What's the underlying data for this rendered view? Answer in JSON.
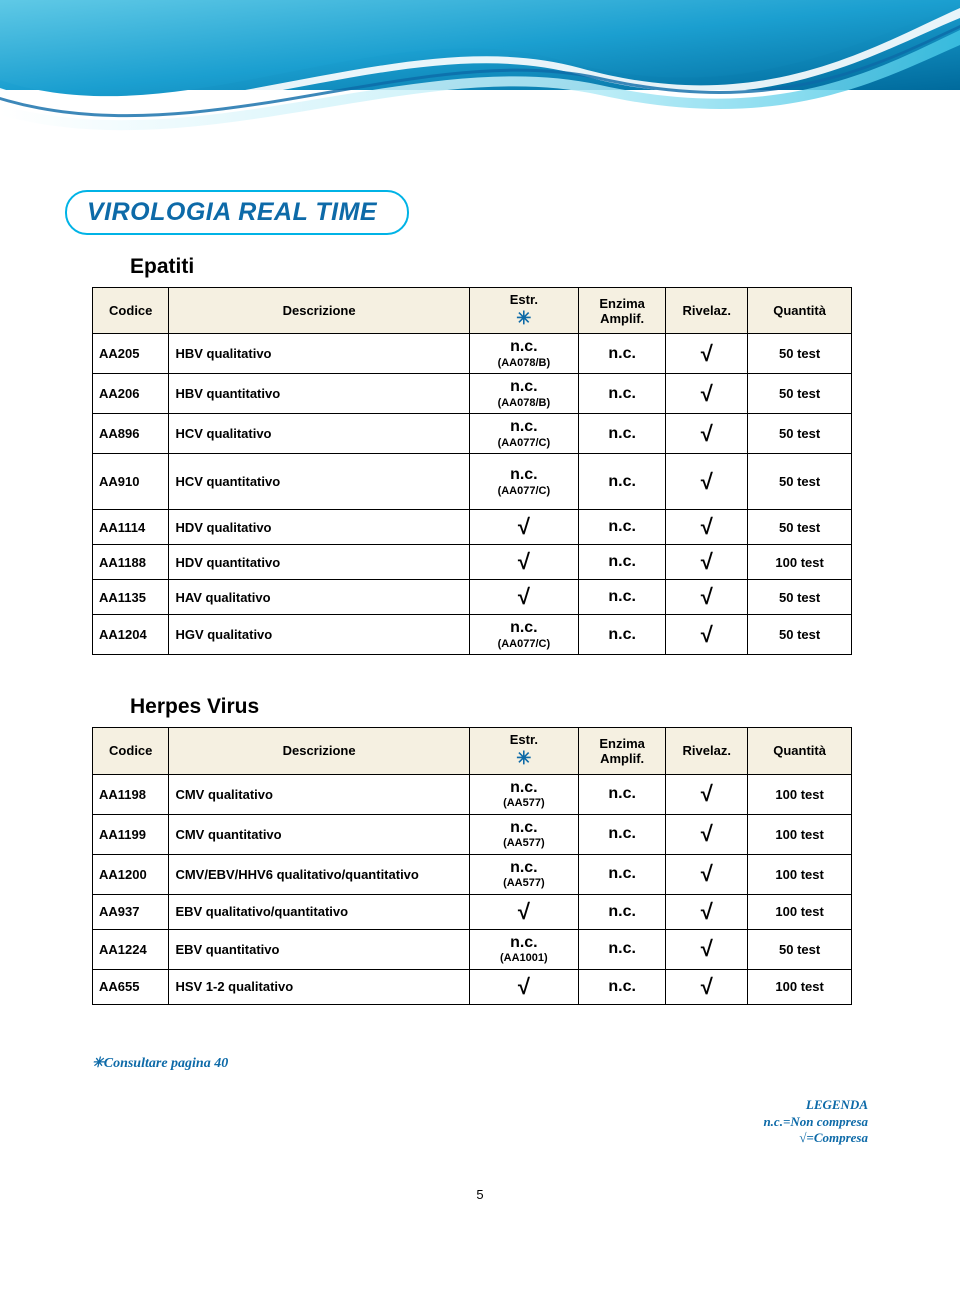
{
  "header_colors": {
    "grad_top": "#2aa9d8",
    "grad_dark": "#0079b0",
    "grad_mid": "#30c3e8",
    "grad_light": "#a0e4f5",
    "white": "#ffffff"
  },
  "title": "VIROLOGIA REAL TIME",
  "star_glyph": "✳",
  "check_glyph": "√",
  "columns": {
    "codice": "Codice",
    "descrizione": "Descrizione",
    "estr": "Estr.",
    "enzima": "Enzima Amplif.",
    "rivelaz": "Rivelaz.",
    "quantita": "Quantità"
  },
  "section1": {
    "title": "Epatiti",
    "rows": [
      {
        "code": "AA205",
        "desc": "HBV qualitativo",
        "estr_nc": true,
        "estr_sub": "(AA078/B)",
        "enz": "n.c.",
        "riv": true,
        "qty": "50 test",
        "tall": false
      },
      {
        "code": "AA206",
        "desc": "HBV quantitativo",
        "estr_nc": true,
        "estr_sub": "(AA078/B)",
        "enz": "n.c.",
        "riv": true,
        "qty": "50 test",
        "tall": false
      },
      {
        "code": "AA896",
        "desc": "HCV qualitativo",
        "estr_nc": true,
        "estr_sub": "(AA077/C)",
        "enz": "n.c.",
        "riv": true,
        "qty": "50 test",
        "tall": false
      },
      {
        "code": "AA910",
        "desc": "HCV quantitativo",
        "estr_nc": true,
        "estr_sub": "(AA077/C)",
        "enz": "n.c.",
        "riv": true,
        "qty": "50 test",
        "tall": true
      },
      {
        "code": "AA1114",
        "desc": "HDV qualitativo",
        "estr_nc": false,
        "estr_sub": "",
        "enz": "n.c.",
        "riv": true,
        "qty": "50 test",
        "tall": false
      },
      {
        "code": "AA1188",
        "desc": "HDV  quantitativo",
        "estr_nc": false,
        "estr_sub": "",
        "enz": "n.c.",
        "riv": true,
        "qty": "100 test",
        "tall": false
      },
      {
        "code": "AA1135",
        "desc": "HAV qualitativo",
        "estr_nc": false,
        "estr_sub": "",
        "enz": "n.c.",
        "riv": true,
        "qty": "50 test",
        "tall": false
      },
      {
        "code": "AA1204",
        "desc": "HGV qualitativo",
        "estr_nc": true,
        "estr_sub": "(AA077/C)",
        "enz": "n.c.",
        "riv": true,
        "qty": "50 test",
        "tall": false
      }
    ]
  },
  "section2": {
    "title": "Herpes Virus",
    "rows": [
      {
        "code": "AA1198",
        "desc": "CMV qualitativo",
        "estr_nc": true,
        "estr_sub": "(AA577)",
        "enz": "n.c.",
        "riv": true,
        "qty": "100 test",
        "tall": false
      },
      {
        "code": "AA1199",
        "desc": "CMV quantitativo",
        "estr_nc": true,
        "estr_sub": "(AA577)",
        "enz": "n.c.",
        "riv": true,
        "qty": "100 test",
        "tall": false
      },
      {
        "code": "AA1200",
        "desc": "CMV/EBV/HHV6 qualitativo/quantitativo",
        "estr_nc": true,
        "estr_sub": "(AA577)",
        "enz": "n.c.",
        "riv": true,
        "qty": "100 test",
        "tall": false
      },
      {
        "code": "AA937",
        "desc": "EBV qualitativo/quantitativo",
        "estr_nc": false,
        "estr_sub": "",
        "enz": "n.c.",
        "riv": true,
        "qty": "100 test",
        "tall": false
      },
      {
        "code": "AA1224",
        "desc": "EBV quantitativo",
        "estr_nc": true,
        "estr_sub": "(AA1001)",
        "enz": "n.c.",
        "riv": true,
        "qty": "50 test",
        "tall": false
      },
      {
        "code": "AA655",
        "desc": "HSV 1-2 qualitativo",
        "estr_nc": false,
        "estr_sub": "",
        "enz": "n.c.",
        "riv": true,
        "qty": "100 test",
        "tall": false
      }
    ]
  },
  "footnote": "✳Consultare pagina 40",
  "legend": {
    "title": "LEGENDA",
    "l1": "n.c.=Non compresa",
    "l2": "√=Compresa"
  },
  "page_number": "5",
  "nc_label": "n.c."
}
